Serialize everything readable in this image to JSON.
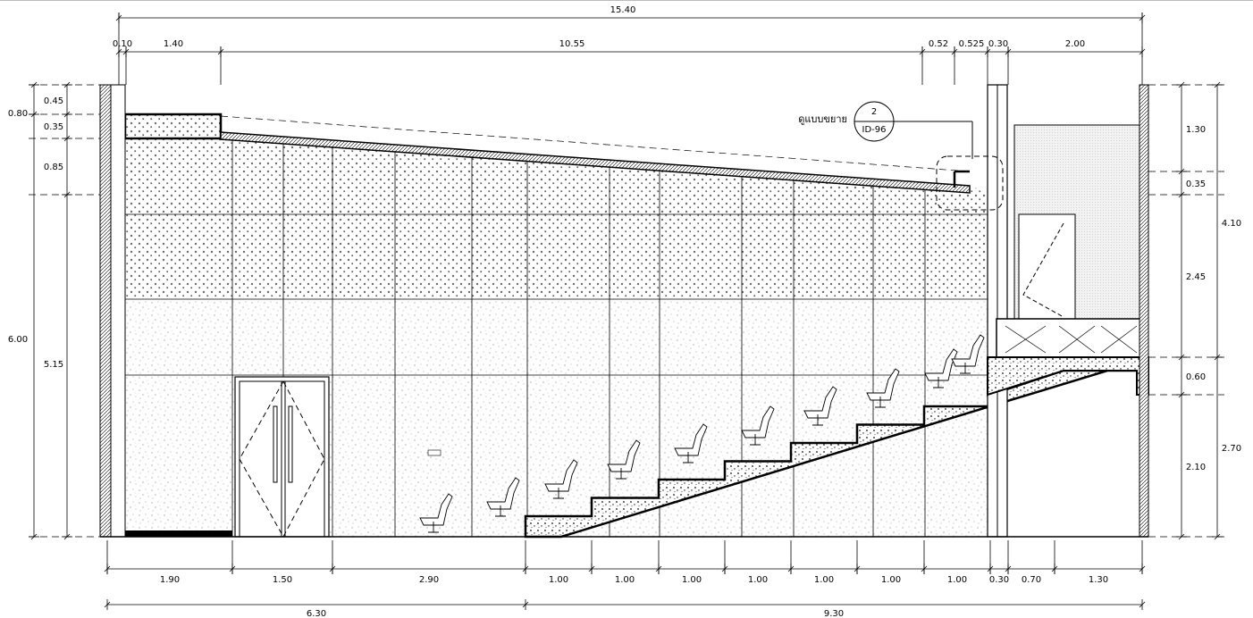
{
  "dimensions": {
    "top_total": "15.40",
    "top": [
      "0.10",
      "1.40",
      "10.55",
      "0.52",
      "0.525",
      "0.30",
      "2.00"
    ],
    "left": [
      "0.45",
      "0.80",
      "0.35",
      "0.85",
      "6.00",
      "5.15"
    ],
    "right": [
      "1.30",
      "0.35",
      "4.10",
      "2.45",
      "0.60",
      "2.70",
      "2.10"
    ],
    "bottom": [
      "1.90",
      "1.50",
      "2.90",
      "1.00",
      "1.00",
      "1.00",
      "1.00",
      "1.00",
      "1.00",
      "1.00",
      "0.30",
      "0.70",
      "1.30"
    ],
    "bottom_total": [
      "6.30",
      "9.30"
    ]
  },
  "callout": {
    "note": "ดูแบบขยาย",
    "number": "2",
    "sheet": "ID-96"
  }
}
